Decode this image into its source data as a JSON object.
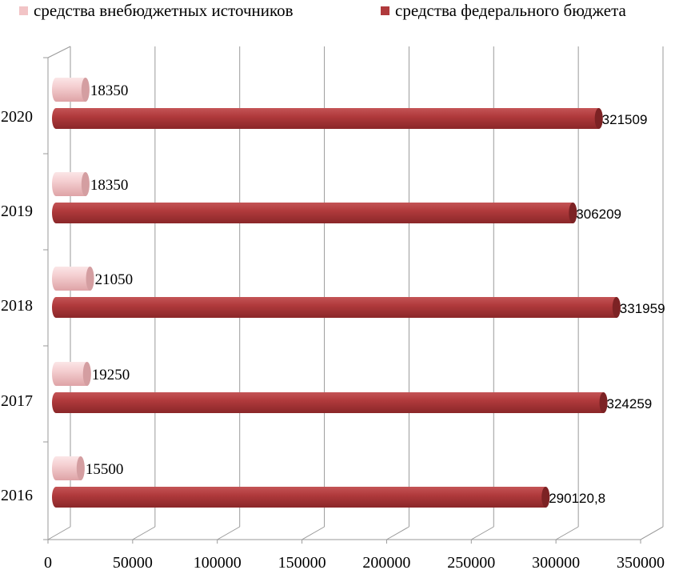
{
  "chart_data": {
    "type": "bar",
    "orientation": "horizontal",
    "style": "3d-cylinder",
    "categories": [
      "2016",
      "2017",
      "2018",
      "2019",
      "2020"
    ],
    "series": [
      {
        "name": "средства внебюджетных источников",
        "color": "#f2c4c6",
        "values": [
          15500,
          19250,
          21050,
          18350,
          18350
        ],
        "labels": [
          "15500",
          "19250",
          "21050",
          "18350",
          "18350"
        ]
      },
      {
        "name": "средства федерального бюджета",
        "color": "#b03a3c",
        "values": [
          290120.8,
          324259,
          331959,
          306209,
          321509
        ],
        "labels": [
          "290120,8",
          "324259",
          "331959",
          "306209",
          "321509"
        ]
      }
    ],
    "xlim": [
      0,
      350000
    ],
    "xticks": [
      "0",
      "50000",
      "100000",
      "150000",
      "200000",
      "250000",
      "300000",
      "350000"
    ],
    "grid": true,
    "legend": "top"
  }
}
